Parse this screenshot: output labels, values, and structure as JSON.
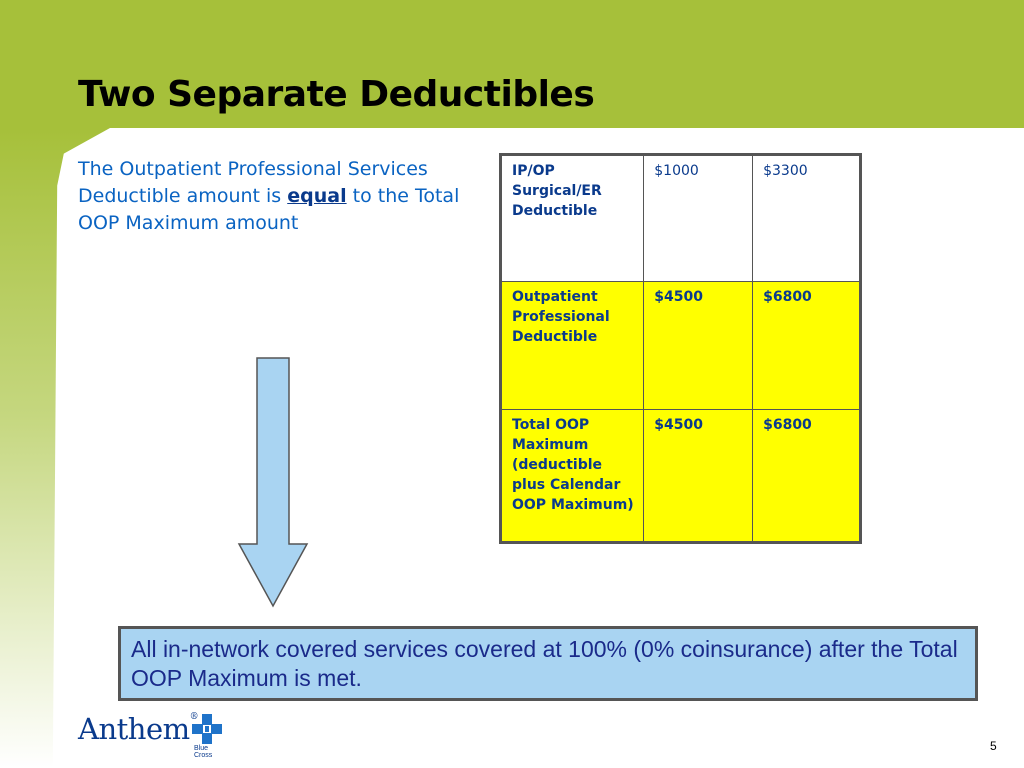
{
  "slide": {
    "title": "Two Separate Deductibles",
    "intro_before": "The Outpatient Professional Services Deductible amount is ",
    "intro_emphasis": "equal",
    "intro_after": " to the Total OOP Maximum amount",
    "page_number": "5"
  },
  "table": {
    "rows": [
      {
        "label": "IP/OP Surgical/ER Deductible",
        "col1": "$1000",
        "col2": "$3300"
      },
      {
        "label": "Outpatient Professional Deductible",
        "col1": "$4500",
        "col2": "$6800"
      },
      {
        "label": "Total OOP Maximum (deductible plus Calendar OOP Maximum)",
        "col1": "$4500",
        "col2": "$6800"
      }
    ]
  },
  "note": {
    "text": "All in-network covered services covered at 100% (0% coinsurance) after the Total OOP Maximum is met."
  },
  "logo": {
    "wordmark": "Anthem",
    "registered": "®",
    "subtext": "Blue Cross"
  },
  "colors": {
    "header_green": "#a6c03a",
    "highlight_yellow": "#ffff00",
    "note_blue": "#a9d4f2",
    "arrow_blue": "#a9d4f2",
    "text_blue": "#0a63c2"
  },
  "icons": [
    "down-arrow-icon",
    "blue-cross-blue-shield-icon"
  ]
}
